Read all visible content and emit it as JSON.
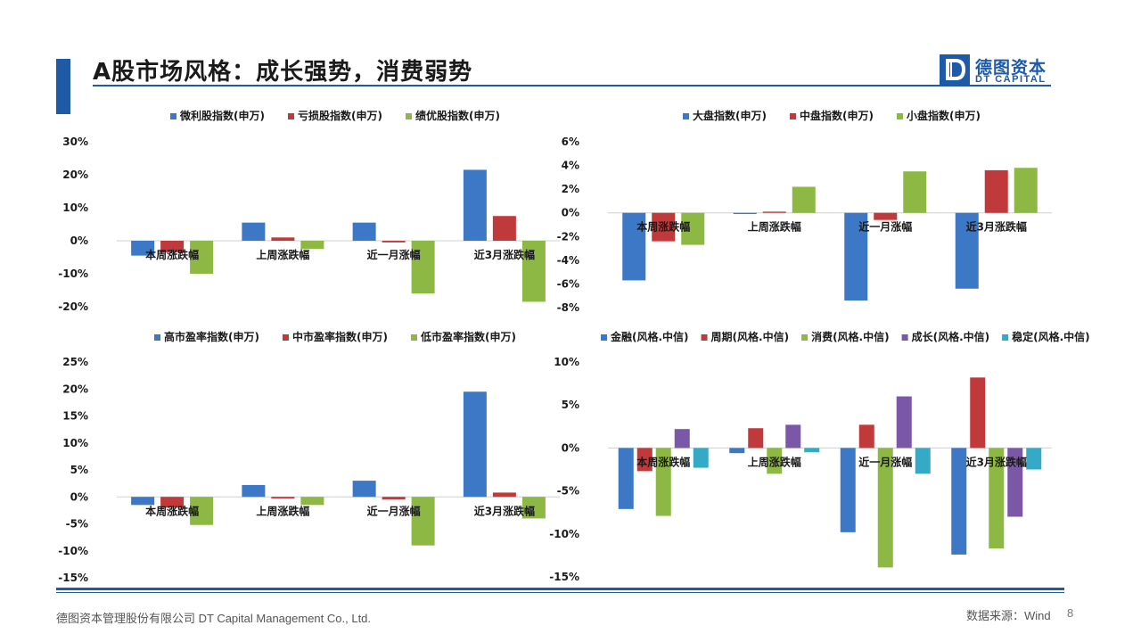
{
  "header": {
    "title": "A股市场风格：成长强势，消费弱势",
    "logo_cn": "德图资本",
    "logo_en": "DT CAPITAL"
  },
  "footer": {
    "company": "德图资本管理股份有限公司 DT Capital Management Co., Ltd.",
    "source": "数据来源：Wind",
    "page": "8"
  },
  "colors": {
    "accent": "#1f5aa6",
    "blue": "#3d78c6",
    "red": "#c0393b",
    "green": "#8cb843",
    "purple": "#7b57a8",
    "teal": "#34aac6"
  },
  "chart_data": [
    {
      "id": "tl",
      "type": "bar",
      "categories": [
        "本周涨跌幅",
        "上周涨跌幅",
        "近一月涨幅",
        "近3月涨跌幅"
      ],
      "series": [
        {
          "name": "微利股指数(申万)",
          "color": "#3d78c6",
          "values": [
            -4.5,
            5.5,
            5.5,
            21.5
          ]
        },
        {
          "name": "亏损股指数(申万)",
          "color": "#c0393b",
          "values": [
            -3.5,
            1.0,
            -0.5,
            7.5
          ]
        },
        {
          "name": "绩优股指数(申万)",
          "color": "#8cb843",
          "values": [
            -10.0,
            -2.5,
            -16.0,
            -18.5
          ]
        }
      ],
      "ylim": [
        -20,
        30
      ],
      "yticks": [
        -20,
        -10,
        0,
        10,
        20,
        30
      ],
      "ytick_labels": [
        "-20%",
        "-10%",
        "0%",
        "10%",
        "20%",
        "30%"
      ],
      "legend": "top"
    },
    {
      "id": "tr",
      "type": "bar",
      "categories": [
        "本周涨跌幅",
        "上周涨跌幅",
        "近一月涨幅",
        "近3月涨跌幅"
      ],
      "series": [
        {
          "name": "大盘指数(申万)",
          "color": "#3d78c6",
          "values": [
            -5.7,
            -0.1,
            -7.4,
            -6.4
          ]
        },
        {
          "name": "中盘指数(申万)",
          "color": "#c0393b",
          "values": [
            -2.4,
            0.1,
            -0.6,
            3.6
          ]
        },
        {
          "name": "小盘指数(申万)",
          "color": "#8cb843",
          "values": [
            -2.7,
            2.2,
            3.5,
            3.8
          ]
        }
      ],
      "ylim": [
        -8,
        6
      ],
      "yticks": [
        -8,
        -6,
        -4,
        -2,
        0,
        2,
        4,
        6
      ],
      "ytick_labels": [
        "-8%",
        "-6%",
        "-4%",
        "-2%",
        "0%",
        "2%",
        "4%",
        "6%"
      ],
      "legend": "top"
    },
    {
      "id": "bl",
      "type": "bar",
      "categories": [
        "本周涨跌幅",
        "上周涨跌幅",
        "近一月涨幅",
        "近3月涨跌幅"
      ],
      "series": [
        {
          "name": "高市盈率指数(申万)",
          "color": "#3d78c6",
          "values": [
            -1.5,
            2.2,
            3.0,
            19.5
          ]
        },
        {
          "name": "中市盈率指数(申万)",
          "color": "#c0393b",
          "values": [
            -2.0,
            -0.3,
            -0.5,
            0.8
          ]
        },
        {
          "name": "低市盈率指数(申万)",
          "color": "#8cb843",
          "values": [
            -5.2,
            -1.5,
            -9.0,
            -4.0
          ]
        }
      ],
      "ylim": [
        -15,
        25
      ],
      "yticks": [
        -15,
        -10,
        -5,
        0,
        5,
        10,
        15,
        20,
        25
      ],
      "ytick_labels": [
        "-15%",
        "-10%",
        "-5%",
        "0%",
        "5%",
        "10%",
        "15%",
        "20%",
        "25%"
      ],
      "legend": "top"
    },
    {
      "id": "br",
      "type": "bar",
      "categories": [
        "本周涨跌幅",
        "上周涨跌幅",
        "近一月涨幅",
        "近3月涨跌幅"
      ],
      "series": [
        {
          "name": "金融(风格.中信)",
          "color": "#3d78c6",
          "values": [
            -7.1,
            -0.6,
            -9.8,
            -12.4
          ]
        },
        {
          "name": "周期(风格.中信)",
          "color": "#c0393b",
          "values": [
            -2.7,
            2.3,
            2.7,
            8.2
          ]
        },
        {
          "name": "消费(风格.中信)",
          "color": "#8cb843",
          "values": [
            -7.9,
            -3.0,
            -13.9,
            -11.7
          ]
        },
        {
          "name": "成长(风格.中信)",
          "color": "#7b57a8",
          "values": [
            2.2,
            2.7,
            6.0,
            -8.0
          ]
        },
        {
          "name": "稳定(风格.中信)",
          "color": "#34aac6",
          "values": [
            -2.3,
            -0.5,
            -3.0,
            -2.5
          ]
        }
      ],
      "ylim": [
        -15,
        10
      ],
      "yticks": [
        -15,
        -10,
        -5,
        0,
        5,
        10
      ],
      "ytick_labels": [
        "-15%",
        "-10%",
        "-5%",
        "0%",
        "5%",
        "10%"
      ],
      "legend": "top"
    }
  ]
}
